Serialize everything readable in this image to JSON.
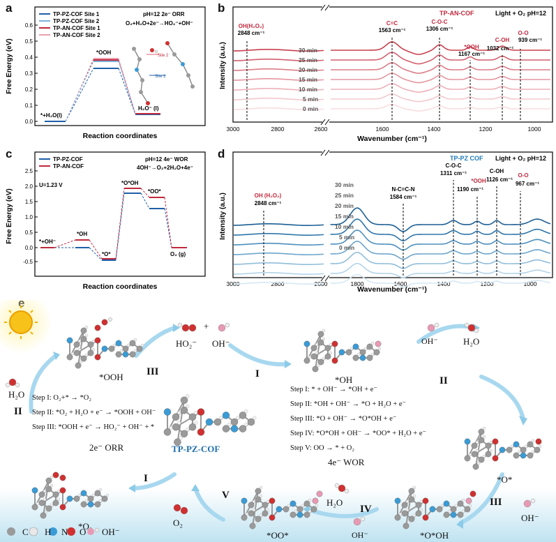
{
  "panel_labels": {
    "a": "a",
    "b": "b",
    "c": "c",
    "d": "d",
    "e": "e"
  },
  "panel_a": {
    "ylabel": "Free Energy (eV)",
    "xlabel": "Reaction coordinates",
    "legend": [
      "TP-PZ-COF Site 1",
      "TP-PZ-COF Site 2",
      "TP-AN-COF Site 1",
      "TP-AN-COF Site 2"
    ],
    "legend_colors": [
      "#1f5fa8",
      "#7fb2dd",
      "#c0283d",
      "#e8a0b0"
    ],
    "cond1": "pH=12  2e⁻ ORR",
    "cond2": "O₂+H₂O+2e⁻→HO₂⁻+OH⁻",
    "state_labels": [
      "*+H₂O(l)",
      "*OOH",
      "H₂O⁻ (l)"
    ],
    "site2": "Site 2",
    "site1": "Site 1",
    "yticks": [
      "0.0",
      "0.1",
      "0.2",
      "0.3",
      "0.4",
      "0.5",
      "0.6"
    ]
  },
  "panel_b": {
    "ylabel": "Intensity (a.u.)",
    "xlabel": "Wavenumber (cm⁻¹)",
    "title": "TP-AN-COF",
    "cond": "Light + O₂ pH=12",
    "xticks": [
      "3000",
      "2800",
      "2600",
      "1600",
      "1400",
      "1200",
      "1000"
    ],
    "times": [
      "30 min",
      "25 min",
      "20 min",
      "15 min",
      "10 min",
      "5 min",
      "0 min"
    ],
    "colors": [
      "#c8404f",
      "#d2606d",
      "#dc7d88",
      "#e596a0",
      "#ecb0b8",
      "#f2c8cd",
      "#f7dde0"
    ],
    "peaks": [
      {
        "name": "OH(H₂O₂)",
        "value": "2848 cm⁻¹"
      },
      {
        "name": "C=C",
        "value": "1563 cm⁻¹"
      },
      {
        "name": "C-O-C",
        "value": "1306 cm⁻¹"
      },
      {
        "name": "*OOH",
        "value": "1167 cm⁻¹"
      },
      {
        "name": "C-OH",
        "sub": "ads",
        "value": "1032 cm⁻¹"
      },
      {
        "name": "O-O",
        "value": "939 cm⁻¹"
      }
    ]
  },
  "panel_c": {
    "ylabel": "Free Energy (eV)",
    "xlabel": "Reaction coordinates",
    "legend": [
      "TP-PZ-COF",
      "TP-AN-COF"
    ],
    "legend_colors": [
      "#1f5fa8",
      "#c0283d"
    ],
    "cond1": "pH=12 4e⁻ WOR",
    "cond2": "4OH⁻→O₂+2H₂O+4e⁻",
    "u": "U=1.23 V",
    "state_labels": [
      "*+OH⁻",
      "*OH",
      "*O*",
      "*O*OH",
      "*OO*",
      "O₂ (g)"
    ],
    "yticks": [
      "-0.5",
      "0.0",
      "0.5",
      "1.0",
      "1.5",
      "2.0",
      "2.5"
    ]
  },
  "panel_d": {
    "ylabel": "Intensity (a.u.)",
    "xlabel": "Wavenumber (cm⁻¹)",
    "title": "TP-PZ COF",
    "cond": "Light + O₂ pH=12",
    "xticks": [
      "3000",
      "2800",
      "2600",
      "1800",
      "1600",
      "1400",
      "1200",
      "1000"
    ],
    "times": [
      "30 min",
      "25 min",
      "20 min",
      "15 min",
      "10 min",
      "5 min",
      "0 min"
    ],
    "colors": [
      "#1c5f93",
      "#2e76aa",
      "#4d8fbd",
      "#6da6cc",
      "#90bdda",
      "#b3d3e7",
      "#d6e8f3"
    ],
    "peaks": [
      {
        "name": "OH (H₂O₂)",
        "value": "2848 cm⁻¹"
      },
      {
        "name": "N-C=C-N",
        "value": "1584 cm⁻¹"
      },
      {
        "name": "C-O-C",
        "value": "1311 cm⁻¹"
      },
      {
        "name": "*OOH",
        "value": "1190 cm⁻¹"
      },
      {
        "name": "C-OH",
        "sub": "ads",
        "value": "1126 cm⁻¹"
      },
      {
        "name": "O-O",
        "value": "967 cm⁻¹"
      }
    ]
  },
  "panel_e": {
    "center_label": "TP-PZ-COF",
    "orr_title": "2e⁻ ORR",
    "wor_title": "4e⁻ WOR",
    "orr_steps": [
      "Step I: O₂+* → *O₂",
      "Step II: *O₂ + H₂O + e⁻ → *OOH + OH⁻",
      "Step III: *OOH + e⁻ → HO₂⁻ + OH⁻ + *"
    ],
    "wor_steps": [
      "Step I: * + OH⁻ → *OH + e⁻",
      "Step II: *OH + OH⁻ → *O + H₂O + e⁻",
      "Step III: *O + OH⁻ → *O*OH + e⁻",
      "Step IV: *O*OH + OH⁻ → *OO* + H₂O + e⁻",
      "Step V: OO → * + O₂"
    ],
    "species": {
      "ooh": "*OOH",
      "o2": "*O₂",
      "oh": "*OH",
      "o": "*O*",
      "ooh2": "*O*OH",
      "oo": "*OO*",
      "ho2": "HO₂⁻",
      "ohm": "OH⁻",
      "h2o": "H₂O",
      "o2gas": "O₂",
      "plus": "+"
    },
    "romans": {
      "orr_II": "II",
      "orr_III": "III",
      "orr_I": "I",
      "wor_I": "I",
      "wor_II": "II",
      "wor_III": "III",
      "wor_IV": "IV",
      "wor_V": "V"
    },
    "legend_atoms": [
      "C",
      "H",
      "N",
      "O",
      "OH⁻"
    ],
    "atom_colors": {
      "C": "#9a9a9a",
      "H": "#e8e8e8",
      "N": "#3a9bd5",
      "O": "#d03030",
      "OH": "#e79ab4"
    }
  }
}
